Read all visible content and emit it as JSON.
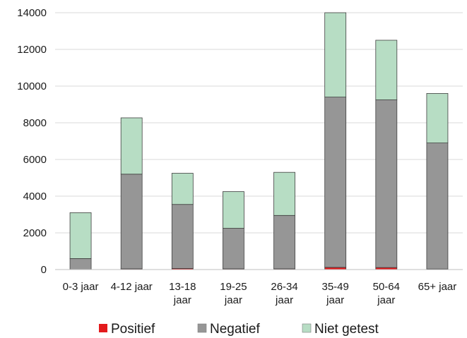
{
  "chart_data": {
    "type": "bar",
    "stacked": true,
    "title": "",
    "xlabel": "",
    "ylabel": "",
    "ylim": [
      0,
      14000
    ],
    "yticks": [
      0,
      2000,
      4000,
      6000,
      8000,
      10000,
      12000,
      14000
    ],
    "grid": true,
    "legend_position": "bottom",
    "categories": [
      [
        "0-3 jaar"
      ],
      [
        "4-12 jaar"
      ],
      [
        "13-18",
        "jaar"
      ],
      [
        "19-25",
        "jaar"
      ],
      [
        "26-34",
        "jaar"
      ],
      [
        "35-49",
        "jaar"
      ],
      [
        "50-64",
        "jaar"
      ],
      [
        "65+ jaar"
      ]
    ],
    "series": [
      {
        "name": "Positief",
        "color": "#e31a1c",
        "values": [
          5,
          40,
          60,
          40,
          40,
          120,
          110,
          30
        ]
      },
      {
        "name": "Negatief",
        "color": "#969696",
        "values": [
          595,
          5160,
          3490,
          2210,
          2910,
          9280,
          9140,
          6870
        ]
      },
      {
        "name": "Niet getest",
        "color": "#b7ddc4",
        "values": [
          2500,
          3070,
          1700,
          2000,
          2350,
          4600,
          3250,
          2700
        ]
      }
    ]
  }
}
